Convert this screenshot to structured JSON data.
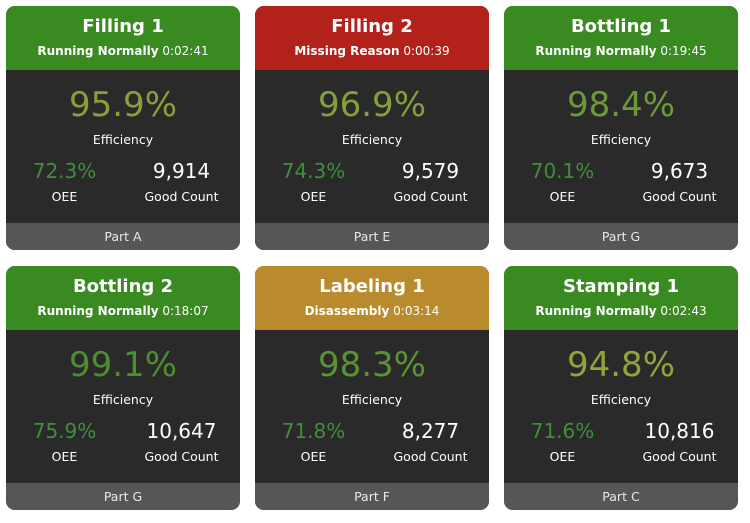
{
  "labels": {
    "efficiency": "Efficiency",
    "oee": "OEE",
    "good_count": "Good Count"
  },
  "cards": [
    {
      "name": "Filling 1",
      "status": "Running Normally",
      "time": "0:02:41",
      "efficiency": "95.9%",
      "oee": "72.3%",
      "good_count": "9,914",
      "part": "Part A",
      "header_color": "#3a8a22",
      "efficiency_color": "#8c9e3c"
    },
    {
      "name": "Filling 2",
      "status": "Missing Reason",
      "time": "0:00:39",
      "efficiency": "96.9%",
      "oee": "74.3%",
      "good_count": "9,579",
      "part": "Part E",
      "header_color": "#b2221a",
      "efficiency_color": "#82a03c"
    },
    {
      "name": "Bottling 1",
      "status": "Running Normally",
      "time": "0:19:45",
      "efficiency": "98.4%",
      "oee": "70.1%",
      "good_count": "9,673",
      "part": "Part G",
      "header_color": "#3a8a22",
      "efficiency_color": "#6c9a38"
    },
    {
      "name": "Bottling 2",
      "status": "Running Normally",
      "time": "0:18:07",
      "efficiency": "99.1%",
      "oee": "75.9%",
      "good_count": "10,647",
      "part": "Part G",
      "header_color": "#3a8a22",
      "efficiency_color": "#4e8e2e"
    },
    {
      "name": "Labeling 1",
      "status": "Disassembly",
      "time": "0:03:14",
      "efficiency": "98.3%",
      "oee": "71.8%",
      "good_count": "8,277",
      "part": "Part F",
      "header_color": "#b98b2d",
      "efficiency_color": "#5a9432"
    },
    {
      "name": "Stamping 1",
      "status": "Running Normally",
      "time": "0:02:43",
      "efficiency": "94.8%",
      "oee": "71.6%",
      "good_count": "10,816",
      "part": "Part C",
      "header_color": "#3a8a22",
      "efficiency_color": "#94a23e"
    }
  ]
}
